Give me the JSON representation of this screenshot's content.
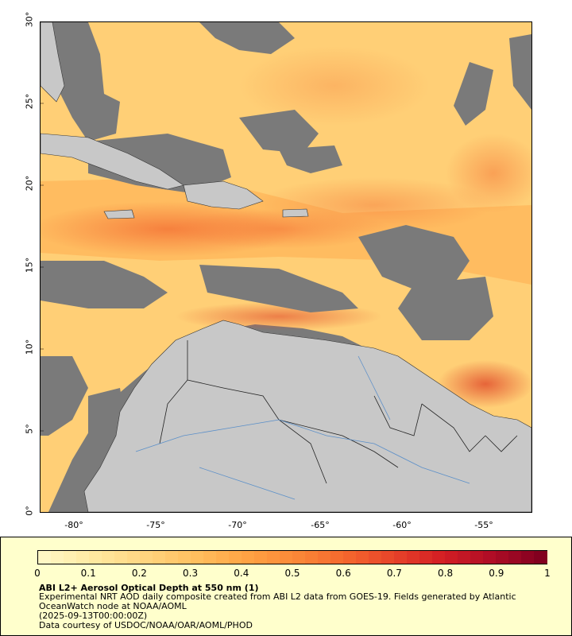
{
  "map": {
    "y_ticks": [
      "0°",
      "5°",
      "10°",
      "15°",
      "20°",
      "25°",
      "30°"
    ],
    "x_ticks": [
      "-80°",
      "-75°",
      "-70°",
      "-65°",
      "-60°",
      "-55°"
    ],
    "lat_range": [
      0,
      30
    ],
    "lon_range": [
      -82,
      -52
    ],
    "colors": {
      "no_data": "#7a7a7a",
      "land": "#c8c8c8",
      "borders": "#222222",
      "rivers": "#5b8fc9"
    }
  },
  "legend": {
    "colorbar_ticks": [
      "0",
      "0.1",
      "0.2",
      "0.3",
      "0.4",
      "0.5",
      "0.6",
      "0.7",
      "0.8",
      "0.9",
      "1"
    ],
    "colorbar_colors": [
      "#fff7c4",
      "#ffe9a0",
      "#ffd580",
      "#ffc060",
      "#ffa545",
      "#fb8a38",
      "#f56a2e",
      "#e8452a",
      "#d41f24",
      "#b00d26",
      "#82001f"
    ],
    "title": "ABI L2+ Aerosol Optical Depth at 550 nm (1)",
    "line1": "Experimental NRT AOD daily composite created from ABI L2 data from GOES-19. Fields generated by Atlantic",
    "line2": "OceanWatch node at NOAA/AOML",
    "line3": "(2025-09-13T00:00:00Z)",
    "line4": "Data courtesy of USDOC/NOAA/OAR/AOML/PHOD"
  }
}
